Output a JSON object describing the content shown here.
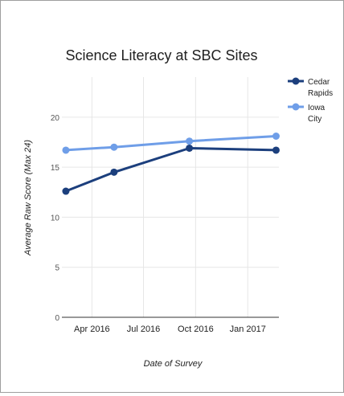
{
  "chart_data": {
    "type": "line",
    "title": "Science Literacy at SBC Sites",
    "xlabel": "Date of Survey",
    "ylabel": "Average Raw Score (Max 24)",
    "x_is_date": true,
    "xlim": [
      "2016-02-08",
      "2017-02-25"
    ],
    "ylim": [
      0,
      24
    ],
    "y_ticks": [
      0,
      5,
      10,
      15,
      20
    ],
    "x_ticks": [
      {
        "date": "2016-04-01",
        "label": "Apr 2016"
      },
      {
        "date": "2016-07-01",
        "label": "Jul 2016"
      },
      {
        "date": "2016-10-01",
        "label": "Oct 2016"
      },
      {
        "date": "2017-01-01",
        "label": "Jan 2017"
      }
    ],
    "grid": true,
    "legend_position": "right",
    "series": [
      {
        "name": "Cedar Rapids",
        "name_lines": [
          "Cedar",
          "Rapids"
        ],
        "color": "#1c3f7d",
        "points": [
          {
            "x": "2016-02-15",
            "y": 12.6
          },
          {
            "x": "2016-05-10",
            "y": 14.5
          },
          {
            "x": "2016-09-20",
            "y": 16.9
          },
          {
            "x": "2017-02-20",
            "y": 16.7
          }
        ]
      },
      {
        "name": "Iowa City",
        "name_lines": [
          "Iowa",
          "City"
        ],
        "color": "#6f9ee8",
        "points": [
          {
            "x": "2016-02-15",
            "y": 16.7
          },
          {
            "x": "2016-05-10",
            "y": 17.0
          },
          {
            "x": "2016-09-20",
            "y": 17.6
          },
          {
            "x": "2017-02-20",
            "y": 18.1
          }
        ]
      }
    ]
  }
}
